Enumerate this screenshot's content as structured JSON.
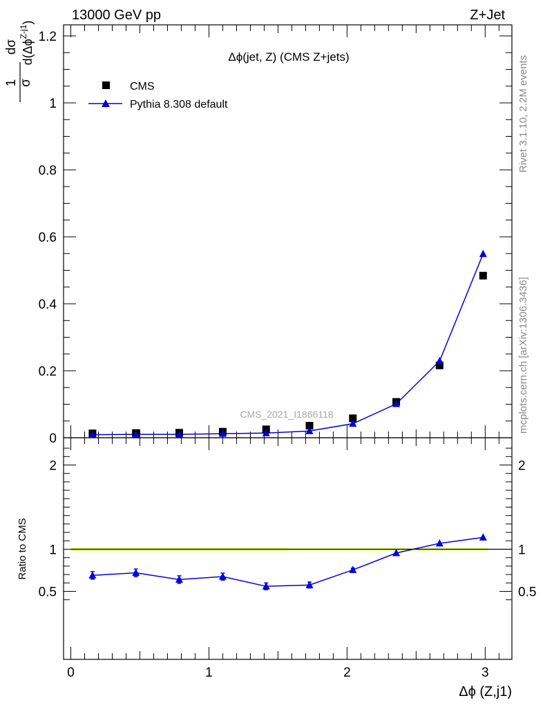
{
  "header": {
    "left": "13000 GeV pp",
    "right": "Z+Jet"
  },
  "side_labels": {
    "rivet": "Rivet 3.1.10,  2.2M events",
    "source": "mcplots.cern.ch [arXiv:1306.3436]"
  },
  "chart_data": [
    {
      "type": "scatter",
      "panel": "main",
      "title": "Δϕ(jet, Z) (CMS Z+jets)",
      "watermark": "CMS_2021_I1866118",
      "ylabel": "1/σ dσ/d(Δϕ^(Z-j1))",
      "xlabel": "Δϕ (Z,j1)",
      "xlim": [
        -0.1,
        3.2
      ],
      "ylim": [
        0,
        1.22
      ],
      "grid": false,
      "legend_position": "top-left",
      "x": [
        0.157,
        0.471,
        0.785,
        1.1,
        1.414,
        1.728,
        2.042,
        2.356,
        2.67,
        2.985
      ],
      "x_ticks": [
        "0",
        "1",
        "2",
        "3"
      ],
      "y_ticks": [
        "0",
        "0.2",
        "0.4",
        "0.6",
        "0.8",
        "1",
        "1.2"
      ],
      "series": [
        {
          "name": "CMS",
          "marker": "square",
          "color": "#000000",
          "values": [
            0.013,
            0.014,
            0.015,
            0.018,
            0.025,
            0.036,
            0.058,
            0.107,
            0.216,
            0.484
          ]
        },
        {
          "name": "Pythia 8.308 default",
          "marker": "triangle",
          "color": "#0000dd",
          "values": [
            0.009,
            0.01,
            0.01,
            0.012,
            0.014,
            0.02,
            0.042,
            0.101,
            0.229,
            0.549
          ]
        }
      ]
    },
    {
      "type": "line",
      "panel": "ratio",
      "ylabel": "Ratio to CMS",
      "xlabel": "Δϕ (Z,j1)",
      "xlim": [
        -0.1,
        3.2
      ],
      "ylim": [
        0.33,
        2.3
      ],
      "y_ticks": [
        "0.5",
        "1",
        "2"
      ],
      "reference_line": 1,
      "band_color": "#ddff44",
      "x": [
        0.157,
        0.471,
        0.785,
        1.1,
        1.414,
        1.728,
        2.042,
        2.356,
        2.67,
        2.985
      ],
      "series": [
        {
          "name": "Pythia 8.308 default",
          "color": "#0000dd",
          "values": [
            0.69,
            0.72,
            0.64,
            0.675,
            0.56,
            0.575,
            0.755,
            0.955,
            1.07,
            1.14
          ],
          "errors": [
            0.045,
            0.045,
            0.045,
            0.042,
            0.04,
            0.035,
            0.02,
            0.01,
            0.006,
            0.006
          ]
        }
      ]
    }
  ]
}
